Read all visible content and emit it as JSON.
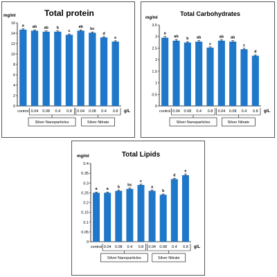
{
  "chart_data": [
    {
      "type": "bar",
      "title": "Total protein",
      "ylabel": "mg/ml",
      "xunit": "g/L",
      "categories": [
        "control",
        "0.04",
        "0.08",
        "0.4",
        "0.8",
        "0.04",
        "0.08",
        "0.4",
        "0.8"
      ],
      "values": [
        14.7,
        14.5,
        14.3,
        14.3,
        13.7,
        14.5,
        14.1,
        13.2,
        12.4
      ],
      "errors": [
        0.15,
        0.15,
        0.15,
        0.15,
        0.15,
        0.15,
        0.15,
        0.15,
        0.15
      ],
      "letters": [
        "a",
        "ab",
        "ab",
        "b",
        "c",
        "ab",
        "bc",
        "d",
        "e"
      ],
      "ylim": [
        0,
        16
      ],
      "yticks": [
        "0",
        "2",
        "4",
        "6",
        "8",
        "10",
        "12",
        "14",
        "16"
      ],
      "groups": [
        {
          "label": "Silver Nanoparticles",
          "from": 1,
          "to": 4
        },
        {
          "label": "Silver Nitrate",
          "from": 5,
          "to": 8
        }
      ],
      "grid": false,
      "color": "#1f77c9"
    },
    {
      "type": "bar",
      "title": "Total Carbohydrates",
      "ylabel": "mg/ml",
      "xunit": "g/L",
      "categories": [
        "control",
        "0.04",
        "0.08",
        "0.4",
        "0.8",
        "0.04",
        "0.08",
        "0.4",
        "0.8"
      ],
      "values": [
        2.95,
        2.82,
        2.74,
        2.78,
        2.52,
        2.82,
        2.78,
        2.45,
        2.17
      ],
      "errors": [
        0.05,
        0.05,
        0.04,
        0.04,
        0.03,
        0.04,
        0.04,
        0.04,
        0.04
      ],
      "letters": [
        "a",
        "ab",
        "b",
        "ab",
        "c",
        "ab",
        "ab",
        "c",
        "d"
      ],
      "ylim": [
        0,
        3.5
      ],
      "yticks": [
        "0",
        "0.5",
        "1",
        "1.5",
        "2",
        "2.5",
        "3",
        "3.5"
      ],
      "groups": [
        {
          "label": "Silver Nanoparticles",
          "from": 1,
          "to": 4
        },
        {
          "label": "Silver Nitrate",
          "from": 5,
          "to": 8
        }
      ],
      "grid": false,
      "color": "#1f77c9"
    },
    {
      "type": "bar",
      "title": "Total Lipids",
      "ylabel": "mg/ml",
      "xunit": "g/L",
      "categories": [
        "control",
        "0.04",
        "0.08",
        "0.4",
        "0.8",
        "0.04",
        "0.08",
        "0.4",
        "0.8"
      ],
      "values": [
        0.25,
        0.25,
        0.26,
        0.27,
        0.29,
        0.26,
        0.24,
        0.32,
        0.34
      ],
      "errors": [
        0.004,
        0.004,
        0.004,
        0.004,
        0.004,
        0.004,
        0.004,
        0.004,
        0.006
      ],
      "letters": [
        "a",
        "a",
        "b",
        "bc",
        "c",
        "a",
        "b",
        "d",
        "e"
      ],
      "ylim": [
        0,
        0.4
      ],
      "yticks": [
        "0",
        "0.05",
        "0.1",
        "0.15",
        "0.2",
        "0.25",
        "0.3",
        "0.35",
        "0.4"
      ],
      "groups": [
        {
          "label": "Silver Nanoparticles",
          "from": 1,
          "to": 4
        },
        {
          "label": "Silver Nitrate",
          "from": 5,
          "to": 8
        }
      ],
      "grid": false,
      "color": "#1f77c9"
    }
  ]
}
